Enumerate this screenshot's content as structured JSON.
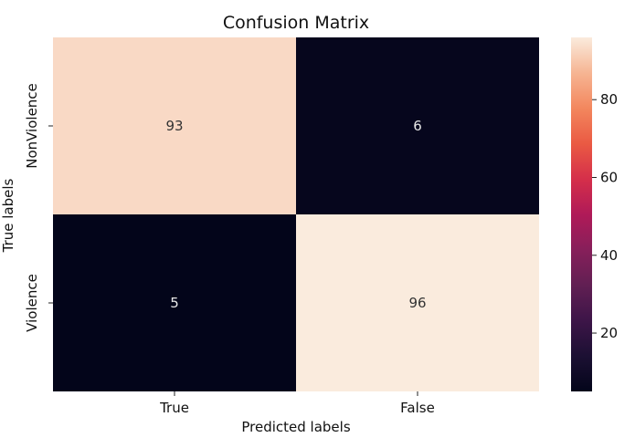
{
  "chart_data": {
    "type": "heatmap",
    "title": "Confusion Matrix",
    "xlabel": "Predicted labels",
    "ylabel": "True labels",
    "x_categories": [
      "True",
      "False"
    ],
    "y_categories": [
      "NonViolence",
      "Violence"
    ],
    "values": [
      [
        93,
        6
      ],
      [
        5,
        96
      ]
    ],
    "colormap": "rocket",
    "colorbar": {
      "ticks": [
        20,
        40,
        60,
        80
      ],
      "range": [
        5,
        96
      ]
    },
    "colors": {
      "low": "#03051a",
      "high": "#faebdd"
    }
  }
}
